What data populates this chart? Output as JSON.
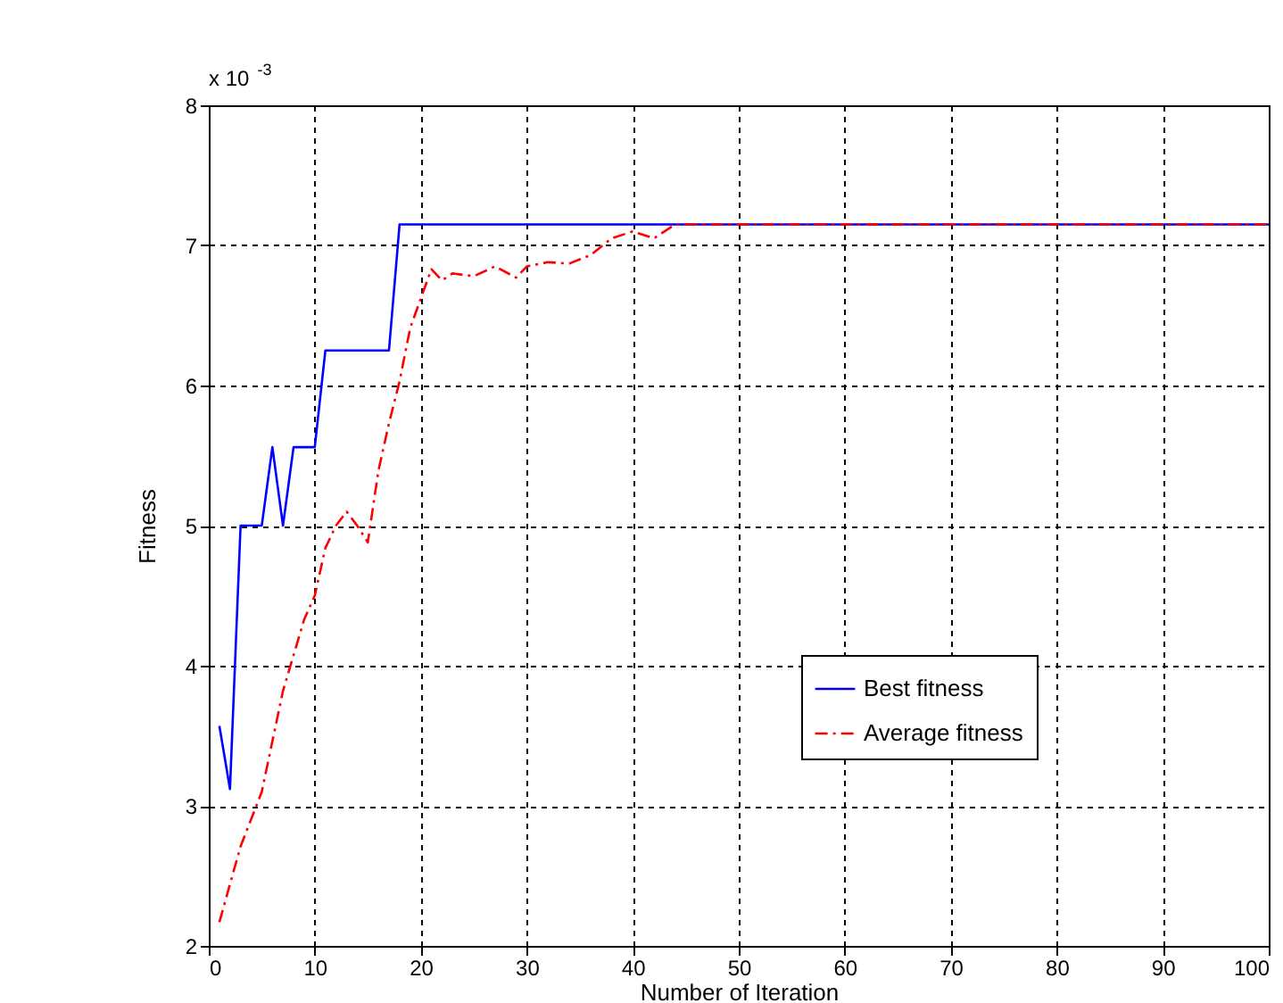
{
  "chart_data": {
    "type": "line",
    "xlabel": "Number of Iteration",
    "ylabel": "Fitness",
    "annotations": [
      "x 10$^{-3}$"
    ],
    "xlim": [
      0,
      100
    ],
    "xticks": [
      0,
      10,
      20,
      30,
      40,
      50,
      60,
      70,
      80,
      90,
      100
    ],
    "ylim": [
      2,
      8
    ],
    "yticks": [
      2,
      3,
      4,
      5,
      6,
      7,
      8
    ],
    "grid": true,
    "legend": "right",
    "series": [
      {
        "name": "Best fitness",
        "color": "#0000ff",
        "line_style": "solid",
        "x": [
          1,
          2,
          3,
          4,
          5,
          6,
          7,
          8,
          9,
          10,
          11,
          12,
          13,
          14,
          15,
          16,
          17,
          18,
          19,
          20,
          30,
          40,
          50,
          60,
          70,
          80,
          90,
          100
        ],
        "values": [
          3.57,
          3.12,
          5.0,
          5.0,
          5.0,
          5.56,
          5.0,
          5.56,
          5.56,
          5.56,
          6.25,
          6.25,
          6.25,
          6.25,
          6.25,
          6.25,
          6.25,
          7.15,
          7.15,
          7.15,
          7.15,
          7.15,
          7.15,
          7.15,
          7.15,
          7.15,
          7.15,
          7.15
        ]
      },
      {
        "name": "Average fitness",
        "color": "#ff0000",
        "line_style": "dashed",
        "x": [
          1,
          3,
          5,
          7,
          9,
          10,
          11,
          12,
          13,
          14,
          15,
          16,
          17,
          18,
          19,
          20,
          21,
          22,
          23,
          25,
          27,
          29,
          30,
          32,
          34,
          36,
          38,
          40,
          42,
          44,
          50,
          60,
          70,
          80,
          90,
          100
        ],
        "values": [
          2.17,
          2.71,
          3.1,
          3.82,
          4.33,
          4.5,
          4.84,
          5.0,
          5.1,
          5.0,
          4.88,
          5.39,
          5.73,
          6.03,
          6.41,
          6.62,
          6.83,
          6.75,
          6.8,
          6.78,
          6.85,
          6.77,
          6.85,
          6.88,
          6.87,
          6.93,
          7.05,
          7.1,
          7.05,
          7.15,
          7.15,
          7.15,
          7.15,
          7.15,
          7.15,
          7.15
        ]
      }
    ]
  }
}
